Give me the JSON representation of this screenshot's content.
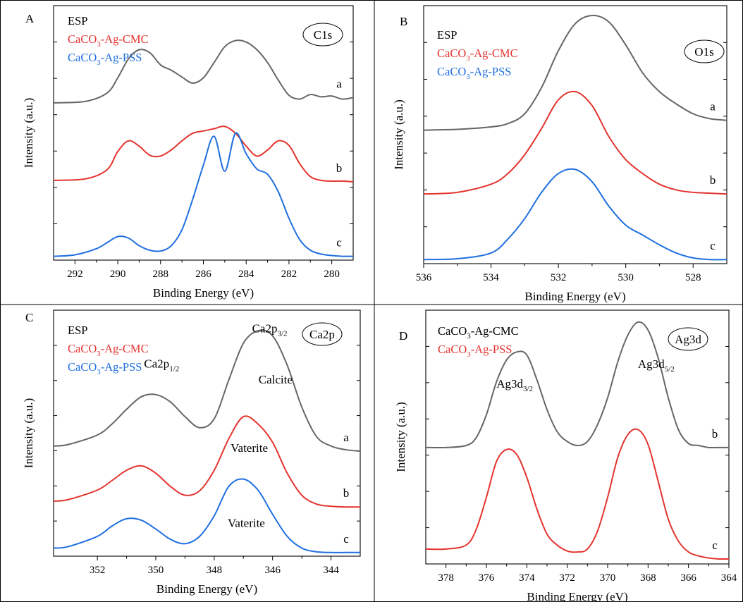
{
  "colors": {
    "gray": "#666666",
    "red": "#e3342f",
    "blue": "#1f6fe0",
    "black": "#000000"
  },
  "chart_data": [
    {
      "type": "line",
      "panel": "A",
      "badge": "C1s",
      "xlabel": "Binding Energy (eV)",
      "ylabel": "Intensity (a.u.)",
      "xlim": [
        293,
        279
      ],
      "xticks": [
        292,
        290,
        288,
        286,
        284,
        282,
        280
      ],
      "ylim": [
        -0.05,
        3.3
      ],
      "legend": [
        {
          "text": "ESP",
          "color": "black"
        },
        {
          "text": "CaCO",
          "sub": "3",
          "suffix": "-Ag-CMC",
          "color": "red"
        },
        {
          "text": "CaCO",
          "sub": "3",
          "suffix": "-Ag-PSS",
          "color": "blue"
        }
      ],
      "series": [
        {
          "label": "a",
          "color": "gray",
          "x": [
            293,
            291.5,
            290.5,
            290,
            289.5,
            289,
            288.5,
            288,
            287.5,
            287,
            286.5,
            286,
            285.5,
            285,
            284.5,
            284,
            283.5,
            283,
            282.5,
            282,
            281.5,
            281,
            280.5,
            280,
            279.5,
            279
          ],
          "y": [
            2.02,
            2.04,
            2.15,
            2.35,
            2.6,
            2.72,
            2.68,
            2.52,
            2.45,
            2.36,
            2.28,
            2.35,
            2.55,
            2.76,
            2.84,
            2.82,
            2.72,
            2.55,
            2.32,
            2.12,
            2.07,
            2.13,
            2.1,
            2.11,
            2.07,
            2.09
          ]
        },
        {
          "label": "b",
          "color": "red",
          "x": [
            293,
            291.5,
            290.5,
            290,
            289.5,
            289,
            288.5,
            288,
            287.5,
            287,
            286.5,
            286,
            285.5,
            285,
            284.5,
            284,
            283.5,
            283,
            282.5,
            282,
            281.5,
            281,
            280.5,
            280,
            279.5,
            279
          ],
          "y": [
            1.0,
            1.02,
            1.14,
            1.38,
            1.52,
            1.45,
            1.33,
            1.32,
            1.4,
            1.52,
            1.62,
            1.65,
            1.68,
            1.71,
            1.62,
            1.45,
            1.32,
            1.4,
            1.52,
            1.46,
            1.22,
            1.05,
            1.0,
            0.99,
            0.99,
            0.98
          ]
        },
        {
          "label": "c",
          "color": "blue",
          "x": [
            293,
            292,
            291,
            290.5,
            290,
            289.5,
            289,
            288.5,
            288,
            287.5,
            287,
            286.5,
            286,
            285.5,
            285,
            284.5,
            284,
            283.5,
            283,
            282.5,
            282,
            281.5,
            281,
            280.5,
            280,
            279.5,
            279
          ],
          "y": [
            0.0,
            0.02,
            0.1,
            0.18,
            0.26,
            0.24,
            0.14,
            0.08,
            0.07,
            0.14,
            0.35,
            0.75,
            1.2,
            1.58,
            1.12,
            1.62,
            1.35,
            1.15,
            1.08,
            0.85,
            0.5,
            0.22,
            0.08,
            0.03,
            0.01,
            0.0,
            0.0
          ]
        }
      ]
    },
    {
      "type": "line",
      "panel": "B",
      "badge": "O1s",
      "xlabel": "Binding Energy (eV)",
      "ylabel": "Intensity (a.u.)",
      "xlim": [
        536,
        527
      ],
      "xticks": [
        536,
        534,
        532,
        530,
        528
      ],
      "ylim": [
        -0.05,
        3.1
      ],
      "legend": [
        {
          "text": "ESP",
          "color": "black"
        },
        {
          "text": "CaCO",
          "sub": "3",
          "suffix": "-Ag-CMC",
          "color": "red"
        },
        {
          "text": "CaCO",
          "sub": "3",
          "suffix": "-Ag-PSS",
          "color": "blue"
        }
      ],
      "series": [
        {
          "label": "a",
          "color": "gray",
          "x": [
            536,
            535,
            534,
            533.5,
            533,
            532.5,
            532,
            531.5,
            531,
            530.5,
            530,
            529.5,
            529,
            528.5,
            528,
            527.5,
            527
          ],
          "y": [
            1.58,
            1.59,
            1.62,
            1.66,
            1.78,
            2.1,
            2.55,
            2.88,
            2.98,
            2.9,
            2.62,
            2.28,
            2.05,
            1.9,
            1.78,
            1.72,
            1.7
          ]
        },
        {
          "label": "b",
          "color": "red",
          "x": [
            536,
            535,
            534,
            533.5,
            533,
            532.5,
            532,
            531.5,
            531,
            530.5,
            530,
            529.5,
            529,
            528.5,
            528,
            527.5,
            527
          ],
          "y": [
            0.8,
            0.82,
            0.92,
            1.05,
            1.28,
            1.6,
            1.95,
            2.05,
            1.88,
            1.5,
            1.22,
            1.05,
            0.92,
            0.85,
            0.82,
            0.81,
            0.8
          ]
        },
        {
          "label": "c",
          "color": "blue",
          "x": [
            536,
            535,
            534,
            533.5,
            533,
            532.5,
            532,
            531.5,
            531,
            530.5,
            530,
            529.5,
            529,
            528.5,
            528,
            527.5,
            527
          ],
          "y": [
            0.0,
            0.01,
            0.08,
            0.25,
            0.5,
            0.82,
            1.05,
            1.1,
            0.95,
            0.65,
            0.42,
            0.3,
            0.18,
            0.08,
            0.02,
            0.0,
            0.0
          ]
        }
      ]
    },
    {
      "type": "line",
      "panel": "C",
      "badge": "Ca2p",
      "xlabel": "Binding Energy (eV)",
      "ylabel": "Intensity (a.u.)",
      "xlim": [
        353.5,
        343
      ],
      "xticks": [
        352,
        350,
        348,
        346,
        344
      ],
      "ylim": [
        -0.05,
        3.3
      ],
      "legend": [
        {
          "text": "ESP",
          "color": "black"
        },
        {
          "text": "CaCO",
          "sub": "3",
          "suffix": "-Ag-CMC",
          "color": "red"
        },
        {
          "text": "CaCO",
          "sub": "3",
          "suffix": "-Ag-PSS",
          "color": "blue"
        }
      ],
      "annotations": [
        {
          "text": "Ca2p",
          "sub": "1/2",
          "x": 349.8,
          "y": 2.52
        },
        {
          "text": "Ca2p",
          "sub": "3/2",
          "x": 346.1,
          "y": 3.0
        },
        {
          "text": "Calcite",
          "x": 345.9,
          "y": 2.3
        },
        {
          "text": "Vaterite",
          "x": 346.8,
          "y": 1.37
        },
        {
          "text": "Vaterite",
          "x": 346.9,
          "y": 0.35
        }
      ],
      "series": [
        {
          "label": "a",
          "color": "gray",
          "x": [
            353.5,
            353,
            352,
            351.5,
            351,
            350.5,
            350,
            349.5,
            349,
            348.5,
            348,
            347.5,
            347,
            346.5,
            346,
            345.5,
            345,
            344.5,
            344,
            343.5,
            343
          ],
          "y": [
            1.45,
            1.47,
            1.6,
            1.75,
            1.95,
            2.12,
            2.15,
            2.05,
            1.85,
            1.7,
            1.82,
            2.35,
            2.85,
            3.02,
            2.95,
            2.55,
            1.98,
            1.58,
            1.45,
            1.4,
            1.38
          ]
        },
        {
          "label": "b",
          "color": "red",
          "x": [
            353.5,
            353,
            352,
            351.5,
            351,
            350.5,
            350,
            349.5,
            349,
            348.5,
            348,
            347.5,
            347,
            346.5,
            346,
            345.5,
            345,
            344.5,
            344,
            343.5,
            343
          ],
          "y": [
            0.7,
            0.72,
            0.85,
            0.98,
            1.12,
            1.18,
            1.08,
            0.9,
            0.78,
            0.84,
            1.12,
            1.55,
            1.85,
            1.75,
            1.5,
            1.08,
            0.78,
            0.66,
            0.63,
            0.62,
            0.62
          ]
        },
        {
          "label": "c",
          "color": "blue",
          "x": [
            353.5,
            353,
            352,
            351.5,
            351,
            350.5,
            350,
            349.5,
            349,
            348.5,
            348,
            347.5,
            347,
            346.5,
            346,
            345.5,
            345,
            344.5,
            344,
            343.5,
            343
          ],
          "y": [
            0.06,
            0.08,
            0.22,
            0.36,
            0.46,
            0.44,
            0.32,
            0.18,
            0.12,
            0.22,
            0.5,
            0.9,
            1.0,
            0.85,
            0.52,
            0.22,
            0.06,
            0.01,
            0.0,
            0.0,
            0.0
          ]
        }
      ]
    },
    {
      "type": "line",
      "panel": "D",
      "badge": "Ag3d",
      "xlabel": "Binding Energy (eV)",
      "ylabel": "Intensity (a.u.)",
      "xlim": [
        379,
        364
      ],
      "xticks": [
        378,
        376,
        374,
        372,
        370,
        368,
        366,
        364
      ],
      "ylim": [
        -0.05,
        2.5
      ],
      "legend": [
        {
          "text": "CaCO",
          "sub": "3",
          "suffix": "-Ag-CMC",
          "color": "black"
        },
        {
          "text": "CaCO",
          "sub": "3",
          "suffix": "-Ag-PSS",
          "color": "red"
        }
      ],
      "annotations": [
        {
          "text": "Ag3d",
          "sub": "3/2",
          "x": 374.6,
          "y": 1.72
        },
        {
          "text": "Ag3d",
          "sub": "5/2",
          "x": 367.6,
          "y": 1.92
        }
      ],
      "series": [
        {
          "label": "b",
          "color": "gray",
          "x": [
            379,
            378,
            377,
            376.5,
            376,
            375.5,
            375,
            374.5,
            374,
            373.5,
            373,
            372.5,
            372,
            371.5,
            371,
            370.5,
            370,
            369.5,
            369,
            368.5,
            368,
            367.5,
            367,
            366.5,
            366,
            365.5,
            365,
            364.5,
            364
          ],
          "y": [
            1.12,
            1.12,
            1.14,
            1.22,
            1.45,
            1.78,
            2.0,
            2.08,
            2.05,
            1.8,
            1.5,
            1.28,
            1.18,
            1.14,
            1.18,
            1.35,
            1.62,
            1.98,
            2.25,
            2.38,
            2.3,
            2.02,
            1.62,
            1.3,
            1.16,
            1.14,
            1.12,
            1.12,
            1.12
          ]
        },
        {
          "label": "c",
          "color": "red",
          "x": [
            379,
            378,
            377,
            376.5,
            376,
            375.5,
            375,
            374.5,
            374,
            373.5,
            373,
            372.5,
            372,
            371.5,
            371,
            370.5,
            370,
            369.5,
            369,
            368.5,
            368,
            367.5,
            367,
            366.5,
            366,
            365.5,
            365,
            364.5,
            364
          ],
          "y": [
            0.1,
            0.1,
            0.14,
            0.3,
            0.62,
            0.98,
            1.1,
            1.05,
            0.82,
            0.5,
            0.25,
            0.14,
            0.08,
            0.07,
            0.1,
            0.28,
            0.62,
            1.02,
            1.25,
            1.3,
            1.15,
            0.78,
            0.4,
            0.18,
            0.07,
            0.03,
            0.01,
            0.0,
            0.0
          ]
        }
      ]
    }
  ]
}
